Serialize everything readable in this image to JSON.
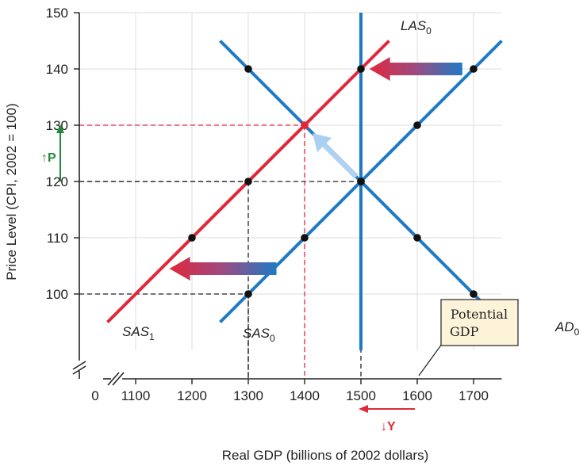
{
  "chart_data": {
    "type": "line",
    "xlabel": "Real GDP (billions of 2002 dollars)",
    "ylabel": "Price Level (CPI, 2002 = 100)",
    "xlim": [
      1000,
      1750
    ],
    "ylim": [
      90,
      150
    ],
    "x_ticks": [
      1100,
      1200,
      1300,
      1400,
      1500,
      1600,
      1700
    ],
    "y_ticks": [
      100,
      110,
      120,
      130,
      140,
      150
    ],
    "origin_label": "0",
    "highlight_x_tick": 1400,
    "highlight_y_tick": 130,
    "series": [
      {
        "name": "AD0",
        "label": "AD",
        "subscript": "0",
        "color": "#1f7ac4",
        "x": [
          1250,
          1750
        ],
        "y": [
          145,
          95
        ],
        "points": [
          {
            "x": 1300,
            "y": 140
          },
          {
            "x": 1500,
            "y": 120
          },
          {
            "x": 1600,
            "y": 110
          },
          {
            "x": 1700,
            "y": 100
          }
        ]
      },
      {
        "name": "SAS0",
        "label": "SAS",
        "subscript": "0",
        "color": "#1f7ac4",
        "x": [
          1250,
          1750
        ],
        "y": [
          95,
          145
        ],
        "points": [
          {
            "x": 1300,
            "y": 100
          },
          {
            "x": 1400,
            "y": 110
          },
          {
            "x": 1600,
            "y": 130
          },
          {
            "x": 1700,
            "y": 140
          }
        ]
      },
      {
        "name": "SAS1",
        "label": "SAS",
        "subscript": "1",
        "color": "#e0283a",
        "x": [
          1050,
          1550
        ],
        "y": [
          95,
          145
        ],
        "points": [
          {
            "x": 1200,
            "y": 110
          },
          {
            "x": 1300,
            "y": 120
          },
          {
            "x": 1400,
            "y": 130
          },
          {
            "x": 1500,
            "y": 140
          }
        ]
      },
      {
        "name": "LAS0",
        "label": "LAS",
        "subscript": "0",
        "color": "#1f7ac4",
        "x": [
          1500,
          1500
        ],
        "y": [
          90,
          150
        ],
        "points": []
      }
    ],
    "equilibria": [
      {
        "name": "initial",
        "x": 1500,
        "y": 120
      },
      {
        "name": "new",
        "x": 1400,
        "y": 130
      }
    ],
    "reference_lines": [
      {
        "name": "initial-equilibrium",
        "x": 1500,
        "y": 120,
        "color": "#222222"
      },
      {
        "name": "new-equilibrium",
        "x": 1400,
        "y": 130,
        "color": "#e0283a"
      },
      {
        "name": "sas1-at-120",
        "x": 1300,
        "y": 120,
        "color": "#222222"
      },
      {
        "name": "sas0-at-100",
        "x": 1300,
        "y": 100,
        "color": "#222222"
      }
    ],
    "shift_arrows": [
      {
        "name": "shift-arrow-upper",
        "from_x": 1680,
        "to_x": 1515,
        "y": 140
      },
      {
        "name": "shift-arrow-lower",
        "from_x": 1350,
        "to_x": 1160,
        "y": 104.5
      }
    ],
    "movement_arrow": {
      "from_x": 1500,
      "from_y": 120,
      "to_x": 1400,
      "to_y": 130
    },
    "callout": {
      "line1": "Potential",
      "line2": "GDP",
      "points_to_x": 1500
    },
    "effects": {
      "price_up": {
        "arrow": "↑",
        "text": "P",
        "color": "#1e8a3a"
      },
      "output_down": {
        "arrow": "↓",
        "text": "Y",
        "color": "#e0283a"
      }
    },
    "colors": {
      "blue": "#1f7ac4",
      "red": "#e0283a",
      "green": "#1e8a3a",
      "grid": "#dcdcdc",
      "callout_fill": "#fdf3d9"
    }
  }
}
